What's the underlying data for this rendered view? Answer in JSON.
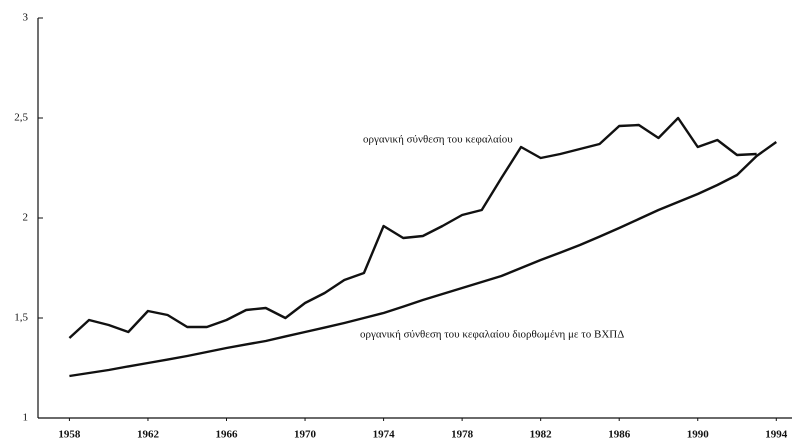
{
  "chart_data": {
    "type": "line",
    "x": [
      1958,
      1959,
      1960,
      1961,
      1962,
      1963,
      1964,
      1965,
      1966,
      1967,
      1968,
      1969,
      1970,
      1971,
      1972,
      1973,
      1974,
      1975,
      1976,
      1977,
      1978,
      1979,
      1980,
      1981,
      1982,
      1983,
      1984,
      1985,
      1986,
      1987,
      1988,
      1989,
      1990,
      1991,
      1992,
      1993,
      1994
    ],
    "series": [
      {
        "name": "οργανική σύνθεση του κεφαλαίου",
        "color": "#111111",
        "values": [
          1.4,
          1.49,
          1.465,
          1.43,
          1.535,
          1.515,
          1.455,
          1.455,
          1.49,
          1.54,
          1.55,
          1.5,
          1.575,
          1.625,
          1.69,
          1.725,
          1.96,
          1.9,
          1.91,
          1.96,
          2.015,
          2.04,
          2.2,
          2.355,
          2.3,
          2.32,
          2.345,
          2.37,
          2.46,
          2.465,
          2.4,
          2.5,
          2.355,
          2.39,
          2.315,
          2.32,
          null
        ]
      },
      {
        "name": "οργανική σύνθεση του κεφαλαίου διορθωμένη με το ΒΧΠΔ",
        "color": "#111111",
        "values": [
          1.21,
          1.225,
          1.24,
          1.258,
          1.275,
          1.292,
          1.31,
          1.33,
          1.35,
          1.368,
          1.385,
          1.408,
          1.43,
          1.452,
          1.475,
          1.5,
          1.525,
          1.557,
          1.59,
          1.62,
          1.65,
          1.68,
          1.71,
          1.75,
          1.79,
          1.827,
          1.865,
          1.907,
          1.95,
          1.995,
          2.04,
          2.08,
          2.12,
          2.165,
          2.215,
          2.31,
          2.38
        ]
      }
    ],
    "xlim": [
      1956.4,
      1994.8
    ],
    "xticks": [
      1958,
      1962,
      1966,
      1970,
      1974,
      1978,
      1982,
      1986,
      1990,
      1994
    ],
    "ylim": [
      1,
      3
    ],
    "yticks": [
      1,
      {
        "value": 1.5,
        "label": "1,5"
      },
      2,
      {
        "value": 2.5,
        "label": "2,5"
      },
      3
    ],
    "grid": false
  }
}
